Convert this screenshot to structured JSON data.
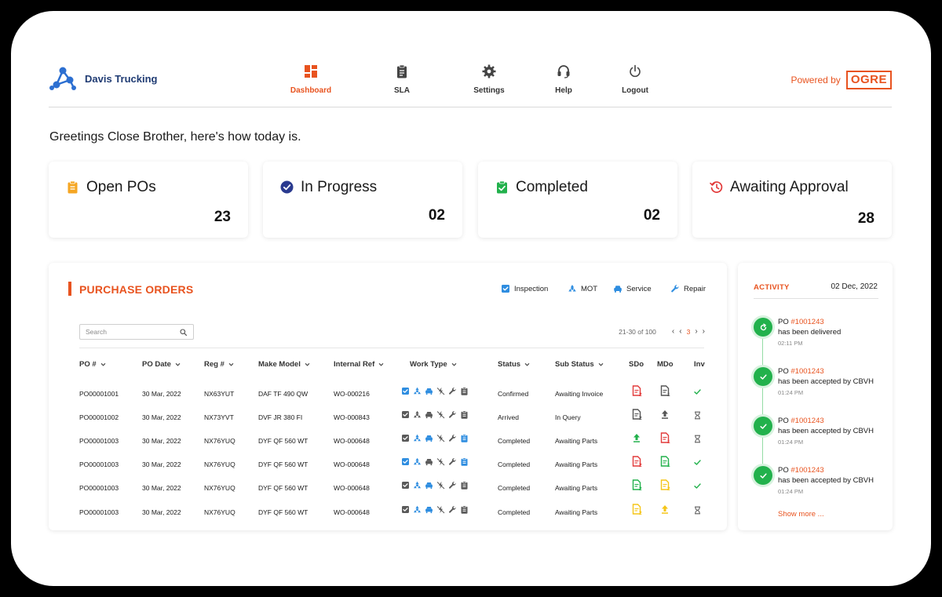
{
  "app": {
    "brand_name": "Davis Trucking",
    "powered_by": "Powered by",
    "vendor_logo_text": "OGRE",
    "accent": "#e8531f",
    "brand_color": "#1f3b73"
  },
  "nav": {
    "items": [
      {
        "label": "Dashboard",
        "icon": "dashboard-icon",
        "active": true
      },
      {
        "label": "SLA",
        "icon": "clipboard-icon",
        "active": false
      },
      {
        "label": "Settings",
        "icon": "gear-icon",
        "active": false
      },
      {
        "label": "Help",
        "icon": "headset-icon",
        "active": false
      },
      {
        "label": "Logout",
        "icon": "power-icon",
        "active": false
      }
    ]
  },
  "greeting": "Greetings Close Brother, here's how today is.",
  "stats": [
    {
      "title": "Open POs",
      "value": "23",
      "icon": "clipboard-icon",
      "color": "#f5a623"
    },
    {
      "title": "In Progress",
      "value": "02",
      "icon": "check-circle-icon",
      "color": "#2a3a8f"
    },
    {
      "title": "Completed",
      "value": "02",
      "icon": "clipboard-check-icon",
      "color": "#22b14c"
    },
    {
      "title": "Awaiting Approval",
      "value": "28",
      "icon": "history-icon",
      "color": "#e23a3a"
    }
  ],
  "purchase_orders": {
    "title": "PURCHASE ORDERS",
    "legend": [
      {
        "label": "Inspection",
        "icon": "inspection-check-icon"
      },
      {
        "label": "MOT",
        "icon": "mot-icon"
      },
      {
        "label": "Service",
        "icon": "car-icon"
      },
      {
        "label": "Repair",
        "icon": "wrench-icon"
      }
    ],
    "search_placeholder": "Search",
    "pagination": {
      "range": "21-30 of 100",
      "current": "3"
    },
    "columns": [
      "PO #",
      "PO Date",
      "Reg #",
      "Make Model",
      "Internal Ref",
      "Work Type",
      "Status",
      "Sub Status",
      "SDo",
      "MDo",
      "Inv"
    ],
    "rows": [
      {
        "po": "PO00001001",
        "date": "30 Mar, 2022",
        "reg": "NX63YUT",
        "model": "DAF TF 490 QW",
        "ref": "WO-000216",
        "status": "Confirmed",
        "sub_status": "Awaiting Invoice",
        "work_type": [
          "blue",
          "blue",
          "blue",
          "grey",
          "grey",
          "grey"
        ],
        "sdo": {
          "kind": "doc",
          "color": "#e23a3a",
          "num": "2"
        },
        "mdo": {
          "kind": "doc",
          "color": "#555555",
          "num": "1"
        },
        "inv": "check"
      },
      {
        "po": "PO00001002",
        "date": "30 Mar, 2022",
        "reg": "NX73YVT",
        "model": "DVF JR 380 FI",
        "ref": "WO-000843",
        "status": "Arrived",
        "sub_status": "In Query",
        "work_type": [
          "grey",
          "grey",
          "grey",
          "grey",
          "grey",
          "grey"
        ],
        "sdo": {
          "kind": "doc",
          "color": "#555555",
          "num": "2"
        },
        "mdo": {
          "kind": "upload",
          "color": "#555555",
          "num": ""
        },
        "inv": "hourglass"
      },
      {
        "po": "PO00001003",
        "date": "30 Mar, 2022",
        "reg": "NX76YUQ",
        "model": "DYF QF 560 WT",
        "ref": "WO-000648",
        "status": "Completed",
        "sub_status": "Awaiting Parts",
        "work_type": [
          "grey",
          "blue",
          "blue",
          "grey",
          "grey",
          "blue"
        ],
        "sdo": {
          "kind": "upload",
          "color": "#22b14c",
          "num": ""
        },
        "mdo": {
          "kind": "doc",
          "color": "#e23a3a",
          "num": "1"
        },
        "inv": "hourglass"
      },
      {
        "po": "PO00001003",
        "date": "30 Mar, 2022",
        "reg": "NX76YUQ",
        "model": "DYF QF 560 WT",
        "ref": "WO-000648",
        "status": "Completed",
        "sub_status": "Awaiting Parts",
        "work_type": [
          "blue",
          "blue",
          "grey",
          "grey",
          "grey",
          "blue"
        ],
        "sdo": {
          "kind": "doc",
          "color": "#e23a3a",
          "num": "2"
        },
        "mdo": {
          "kind": "doc",
          "color": "#22b14c",
          "num": "1"
        },
        "inv": "check"
      },
      {
        "po": "PO00001003",
        "date": "30 Mar, 2022",
        "reg": "NX76YUQ",
        "model": "DYF QF 560 WT",
        "ref": "WO-000648",
        "status": "Completed",
        "sub_status": "Awaiting Parts",
        "work_type": [
          "grey",
          "blue",
          "blue",
          "grey",
          "grey",
          "grey"
        ],
        "sdo": {
          "kind": "doc",
          "color": "#22b14c",
          "num": "2"
        },
        "mdo": {
          "kind": "doc",
          "color": "#f5c518",
          "num": "2"
        },
        "inv": "check"
      },
      {
        "po": "PO00001003",
        "date": "30 Mar, 2022",
        "reg": "NX76YUQ",
        "model": "DYF QF 560 WT",
        "ref": "WO-000648",
        "status": "Completed",
        "sub_status": "Awaiting Parts",
        "work_type": [
          "grey",
          "blue",
          "blue",
          "grey",
          "grey",
          "grey"
        ],
        "sdo": {
          "kind": "doc",
          "color": "#f5c518",
          "num": "2"
        },
        "mdo": {
          "kind": "upload",
          "color": "#f5c518",
          "num": ""
        },
        "inv": "hourglass"
      }
    ]
  },
  "activity": {
    "title": "ACTIVITY",
    "date": "02 Dec, 2022",
    "items": [
      {
        "prefix": "PO ",
        "po": "#1001243",
        "text": "has been delivered",
        "time": "02:11 PM",
        "icon": "redo-icon"
      },
      {
        "prefix": "PO ",
        "po": "#1001243",
        "text": "has been accepted by CBVH",
        "time": "01:24 PM",
        "icon": "check-icon"
      },
      {
        "prefix": "PO ",
        "po": "#1001243",
        "text": "has been accepted by CBVH",
        "time": "01:24 PM",
        "icon": "check-icon"
      },
      {
        "prefix": "PO ",
        "po": "#1001243",
        "text": "has been accepted by CBVH",
        "time": "01:24 PM",
        "icon": "check-icon"
      }
    ],
    "show_more": "Show more ..."
  }
}
